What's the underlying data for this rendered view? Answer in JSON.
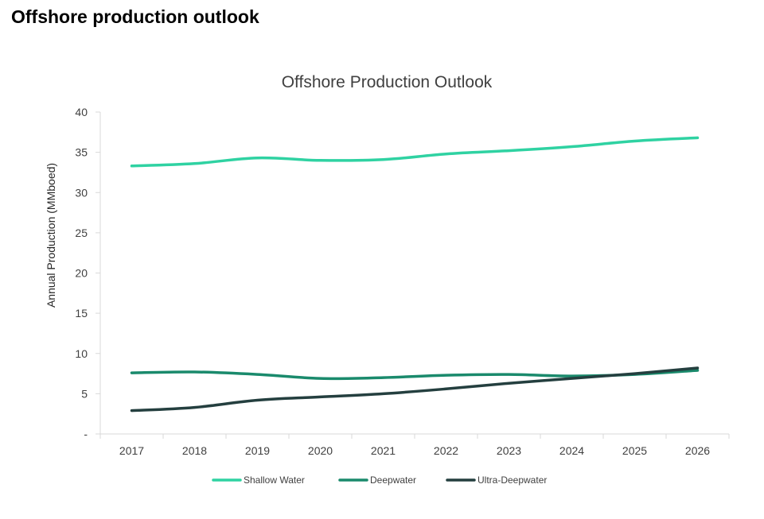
{
  "page": {
    "heading": "Offshore production outlook"
  },
  "chart_data": {
    "type": "line",
    "title": "Offshore Production Outlook",
    "xlabel": "",
    "ylabel": "Annual Production (MMboed)",
    "x": [
      "2017",
      "2018",
      "2019",
      "2020",
      "2021",
      "2022",
      "2023",
      "2024",
      "2025",
      "2026"
    ],
    "ylim": [
      0,
      40
    ],
    "yticks": [
      {
        "value": 0,
        "label": "-"
      },
      {
        "value": 5,
        "label": "5"
      },
      {
        "value": 10,
        "label": "10"
      },
      {
        "value": 15,
        "label": "15"
      },
      {
        "value": 20,
        "label": "20"
      },
      {
        "value": 25,
        "label": "25"
      },
      {
        "value": 30,
        "label": "30"
      },
      {
        "value": 35,
        "label": "35"
      },
      {
        "value": 40,
        "label": "40"
      }
    ],
    "grid": false,
    "legend_position": "bottom",
    "series": [
      {
        "name": "Shallow Water",
        "color": "#2fd2a2",
        "values": [
          33.3,
          33.6,
          34.3,
          34.0,
          34.1,
          34.8,
          35.2,
          35.7,
          36.4,
          36.8
        ]
      },
      {
        "name": "Deepwater",
        "color": "#1a8a6c",
        "values": [
          7.6,
          7.7,
          7.4,
          6.9,
          7.0,
          7.3,
          7.4,
          7.2,
          7.4,
          7.9
        ]
      },
      {
        "name": "Ultra-Deepwater",
        "color": "#243f3f",
        "values": [
          2.9,
          3.3,
          4.2,
          4.6,
          5.0,
          5.6,
          6.3,
          6.9,
          7.5,
          8.2
        ]
      }
    ]
  }
}
